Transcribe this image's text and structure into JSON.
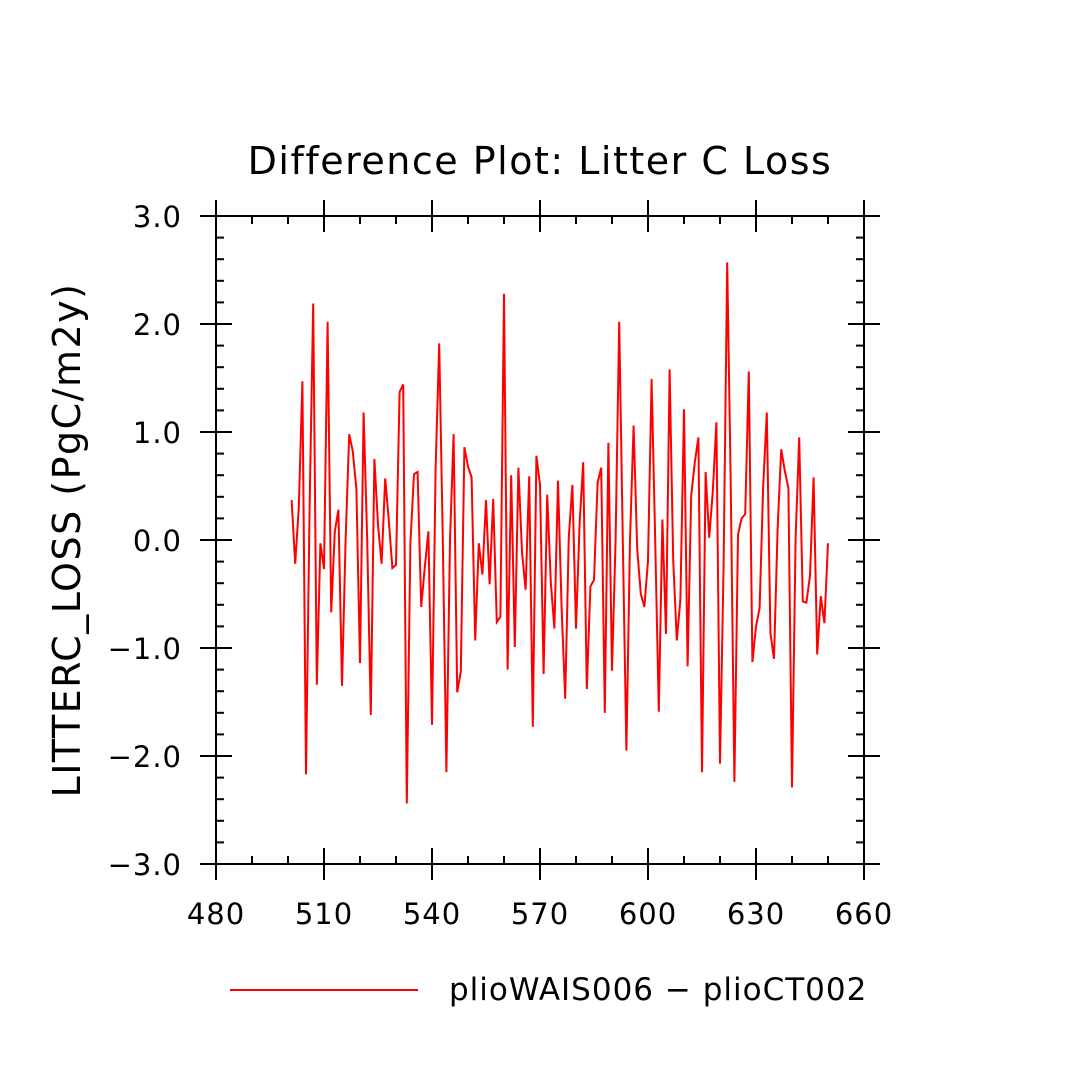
{
  "chart_data": {
    "type": "line",
    "title": "Difference Plot: Litter C Loss",
    "xlabel": "",
    "ylabel": "LITTERC_LOSS  (PgC/m2y)",
    "xlim": [
      480,
      660
    ],
    "ylim": [
      -3.0,
      3.0
    ],
    "x_ticks": [
      480,
      510,
      540,
      570,
      600,
      630,
      660
    ],
    "x_tick_labels": [
      "480",
      "510",
      "540",
      "570",
      "600",
      "630",
      "660"
    ],
    "y_ticks": [
      -3.0,
      -2.0,
      -1.0,
      0.0,
      1.0,
      2.0,
      3.0
    ],
    "y_tick_labels": [
      "−3.0",
      "−2.0",
      "−1.0",
      "0.0",
      "1.0",
      "2.0",
      "3.0"
    ],
    "grid": false,
    "legend_position": "bottom",
    "series": [
      {
        "name": "plioWAIS006 − plioCT002",
        "color": "#ff0000",
        "x": [
          501,
          502,
          503,
          504,
          505,
          506,
          507,
          508,
          509,
          510,
          511,
          512,
          513,
          514,
          515,
          516,
          517,
          518,
          519,
          520,
          521,
          522,
          523,
          524,
          525,
          526,
          527,
          528,
          529,
          530,
          531,
          532,
          533,
          534,
          535,
          536,
          537,
          538,
          539,
          540,
          541,
          542,
          543,
          544,
          545,
          546,
          547,
          548,
          549,
          550,
          551,
          552,
          553,
          554,
          555,
          556,
          557,
          558,
          559,
          560,
          561,
          562,
          563,
          564,
          565,
          566,
          567,
          568,
          569,
          570,
          571,
          572,
          573,
          574,
          575,
          576,
          577,
          578,
          579,
          580,
          581,
          582,
          583,
          584,
          585,
          586,
          587,
          588,
          589,
          590,
          591,
          592,
          593,
          594,
          595,
          596,
          597,
          598,
          599,
          600,
          601,
          602,
          603,
          604,
          605,
          606,
          607,
          608,
          609,
          610,
          611,
          612,
          613,
          614,
          615,
          616,
          617,
          618,
          619,
          620,
          621,
          622,
          623,
          624,
          625,
          626,
          627,
          628,
          629,
          630,
          631,
          632,
          633,
          634,
          635,
          636,
          637,
          638,
          639,
          640,
          641,
          642,
          643,
          644,
          645,
          646,
          647,
          648,
          649,
          650
        ],
        "values": [
          0.37,
          -0.22,
          0.3,
          1.47,
          -2.17,
          0.3,
          2.19,
          -1.34,
          -0.03,
          -0.27,
          2.02,
          -0.67,
          0.08,
          0.28,
          -1.35,
          0.0,
          0.98,
          0.82,
          0.47,
          -1.14,
          1.18,
          0.0,
          -1.62,
          0.75,
          0.14,
          -0.22,
          0.57,
          0.18,
          -0.26,
          -0.23,
          1.37,
          1.44,
          -2.44,
          -0.03,
          0.61,
          0.63,
          -0.62,
          -0.25,
          0.08,
          -1.71,
          0.66,
          1.82,
          0.0,
          -2.15,
          0.0,
          0.98,
          -1.41,
          -1.22,
          0.86,
          0.68,
          0.58,
          -0.93,
          -0.03,
          -0.32,
          0.37,
          -0.41,
          0.38,
          -0.76,
          -0.71,
          2.28,
          -1.2,
          0.6,
          -0.99,
          0.67,
          -0.11,
          -0.46,
          0.59,
          -1.73,
          0.78,
          0.51,
          -1.24,
          0.42,
          -0.39,
          -0.82,
          0.55,
          -0.63,
          -1.47,
          0.03,
          0.51,
          -0.82,
          0.15,
          0.72,
          -1.38,
          -0.43,
          -0.37,
          0.53,
          0.67,
          -1.6,
          0.9,
          -1.21,
          0.0,
          2.02,
          0.0,
          -1.95,
          0.0,
          1.06,
          -0.08,
          -0.5,
          -0.62,
          -0.19,
          1.49,
          0.0,
          -1.59,
          0.19,
          -0.87,
          1.58,
          -0.18,
          -0.93,
          -0.55,
          1.21,
          -1.17,
          0.41,
          0.72,
          0.95,
          -2.15,
          0.63,
          0.02,
          0.45,
          1.09,
          -2.07,
          -0.23,
          2.57,
          0.48,
          -2.24,
          0.05,
          0.2,
          0.24,
          1.56,
          -1.13,
          -0.8,
          -0.63,
          0.5,
          1.18,
          -0.86,
          -1.1,
          0.1,
          0.84,
          0.64,
          0.48,
          -2.29,
          0.02,
          0.95,
          -0.57,
          -0.58,
          -0.33,
          0.58,
          -1.06,
          -0.52,
          -0.77,
          -0.03
        ]
      }
    ]
  }
}
